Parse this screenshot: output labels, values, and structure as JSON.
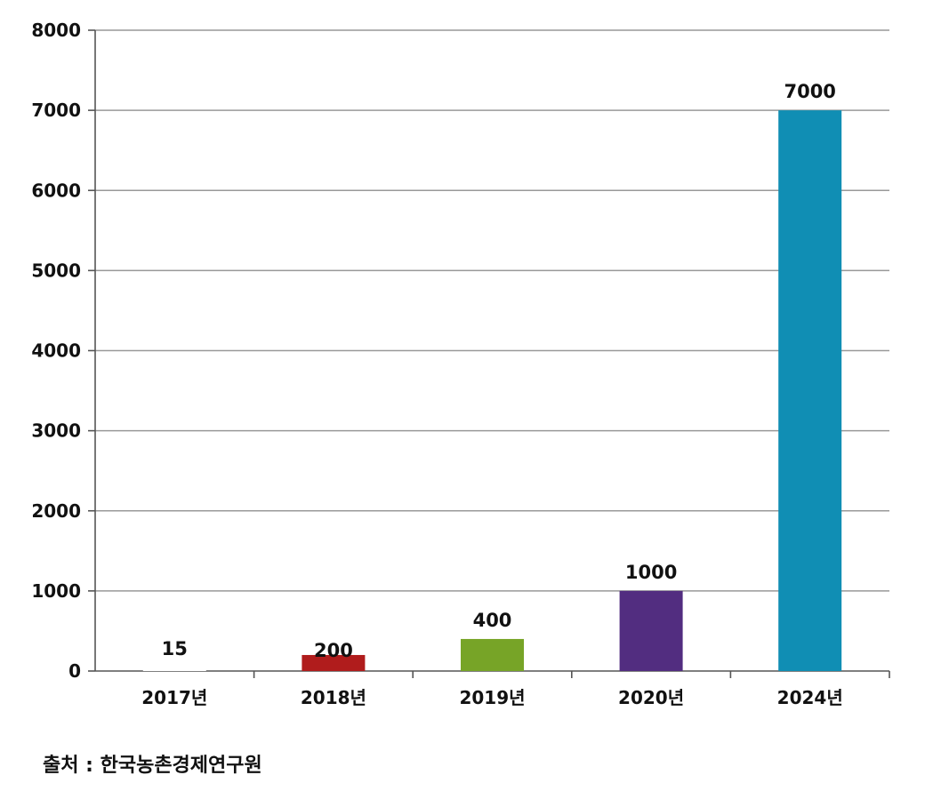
{
  "chart_data": {
    "type": "bar",
    "categories": [
      "2017년",
      "2018년",
      "2019년",
      "2020년",
      "2024년"
    ],
    "values": [
      15,
      200,
      400,
      1000,
      7000
    ],
    "data_labels": [
      "15",
      "200",
      "400",
      "1000",
      "7000"
    ],
    "bar_colors": [
      "#ffffff",
      "#b01c1c",
      "#77a427",
      "#522d80",
      "#108eb4"
    ],
    "ylim": [
      0,
      8000
    ],
    "yticks": [
      0,
      1000,
      2000,
      3000,
      4000,
      5000,
      6000,
      7000,
      8000
    ],
    "ytick_labels": [
      "0",
      "1000",
      "2000",
      "3000",
      "4000",
      "5000",
      "6000",
      "7000",
      "8000"
    ],
    "grid": true,
    "grid_color": "#999999",
    "title": "",
    "xlabel": "",
    "ylabel": ""
  },
  "source": "출처 : 한국농촌경제연구원"
}
